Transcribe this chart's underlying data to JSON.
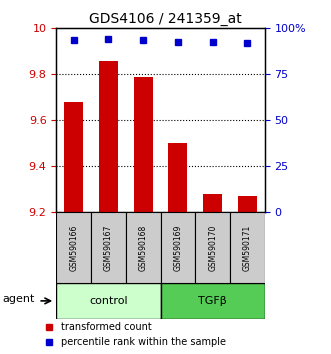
{
  "title": "GDS4106 / 241359_at",
  "samples": [
    "GSM590166",
    "GSM590167",
    "GSM590168",
    "GSM590169",
    "GSM590170",
    "GSM590171"
  ],
  "red_values": [
    9.68,
    9.86,
    9.79,
    9.5,
    9.28,
    9.27
  ],
  "blue_values": [
    93.5,
    94.0,
    93.5,
    92.5,
    92.5,
    92.0
  ],
  "ylim_left": [
    9.2,
    10.0
  ],
  "ylim_right": [
    0,
    100
  ],
  "yticks_left": [
    9.2,
    9.4,
    9.6,
    9.8,
    10.0
  ],
  "ytick_labels_left": [
    "9.2",
    "9.4",
    "9.6",
    "9.8",
    "10"
  ],
  "yticks_right": [
    0,
    25,
    50,
    75,
    100
  ],
  "ytick_labels_right": [
    "0",
    "25",
    "50",
    "75",
    "100%"
  ],
  "bar_color": "#cc0000",
  "dot_color": "#0000cc",
  "bar_bottom": 9.2,
  "group1_label": "control",
  "group2_label": "TGFβ",
  "group1_color": "#ccffcc",
  "group2_color": "#55cc55",
  "agent_label": "agent",
  "legend1": "transformed count",
  "legend2": "percentile rank within the sample",
  "tick_color_left": "#cc0000",
  "tick_color_right": "#0000cc",
  "grid_yticks": [
    9.4,
    9.6,
    9.8
  ],
  "label_box_color": "#cccccc",
  "fig_width": 3.31,
  "fig_height": 3.54,
  "dpi": 100
}
